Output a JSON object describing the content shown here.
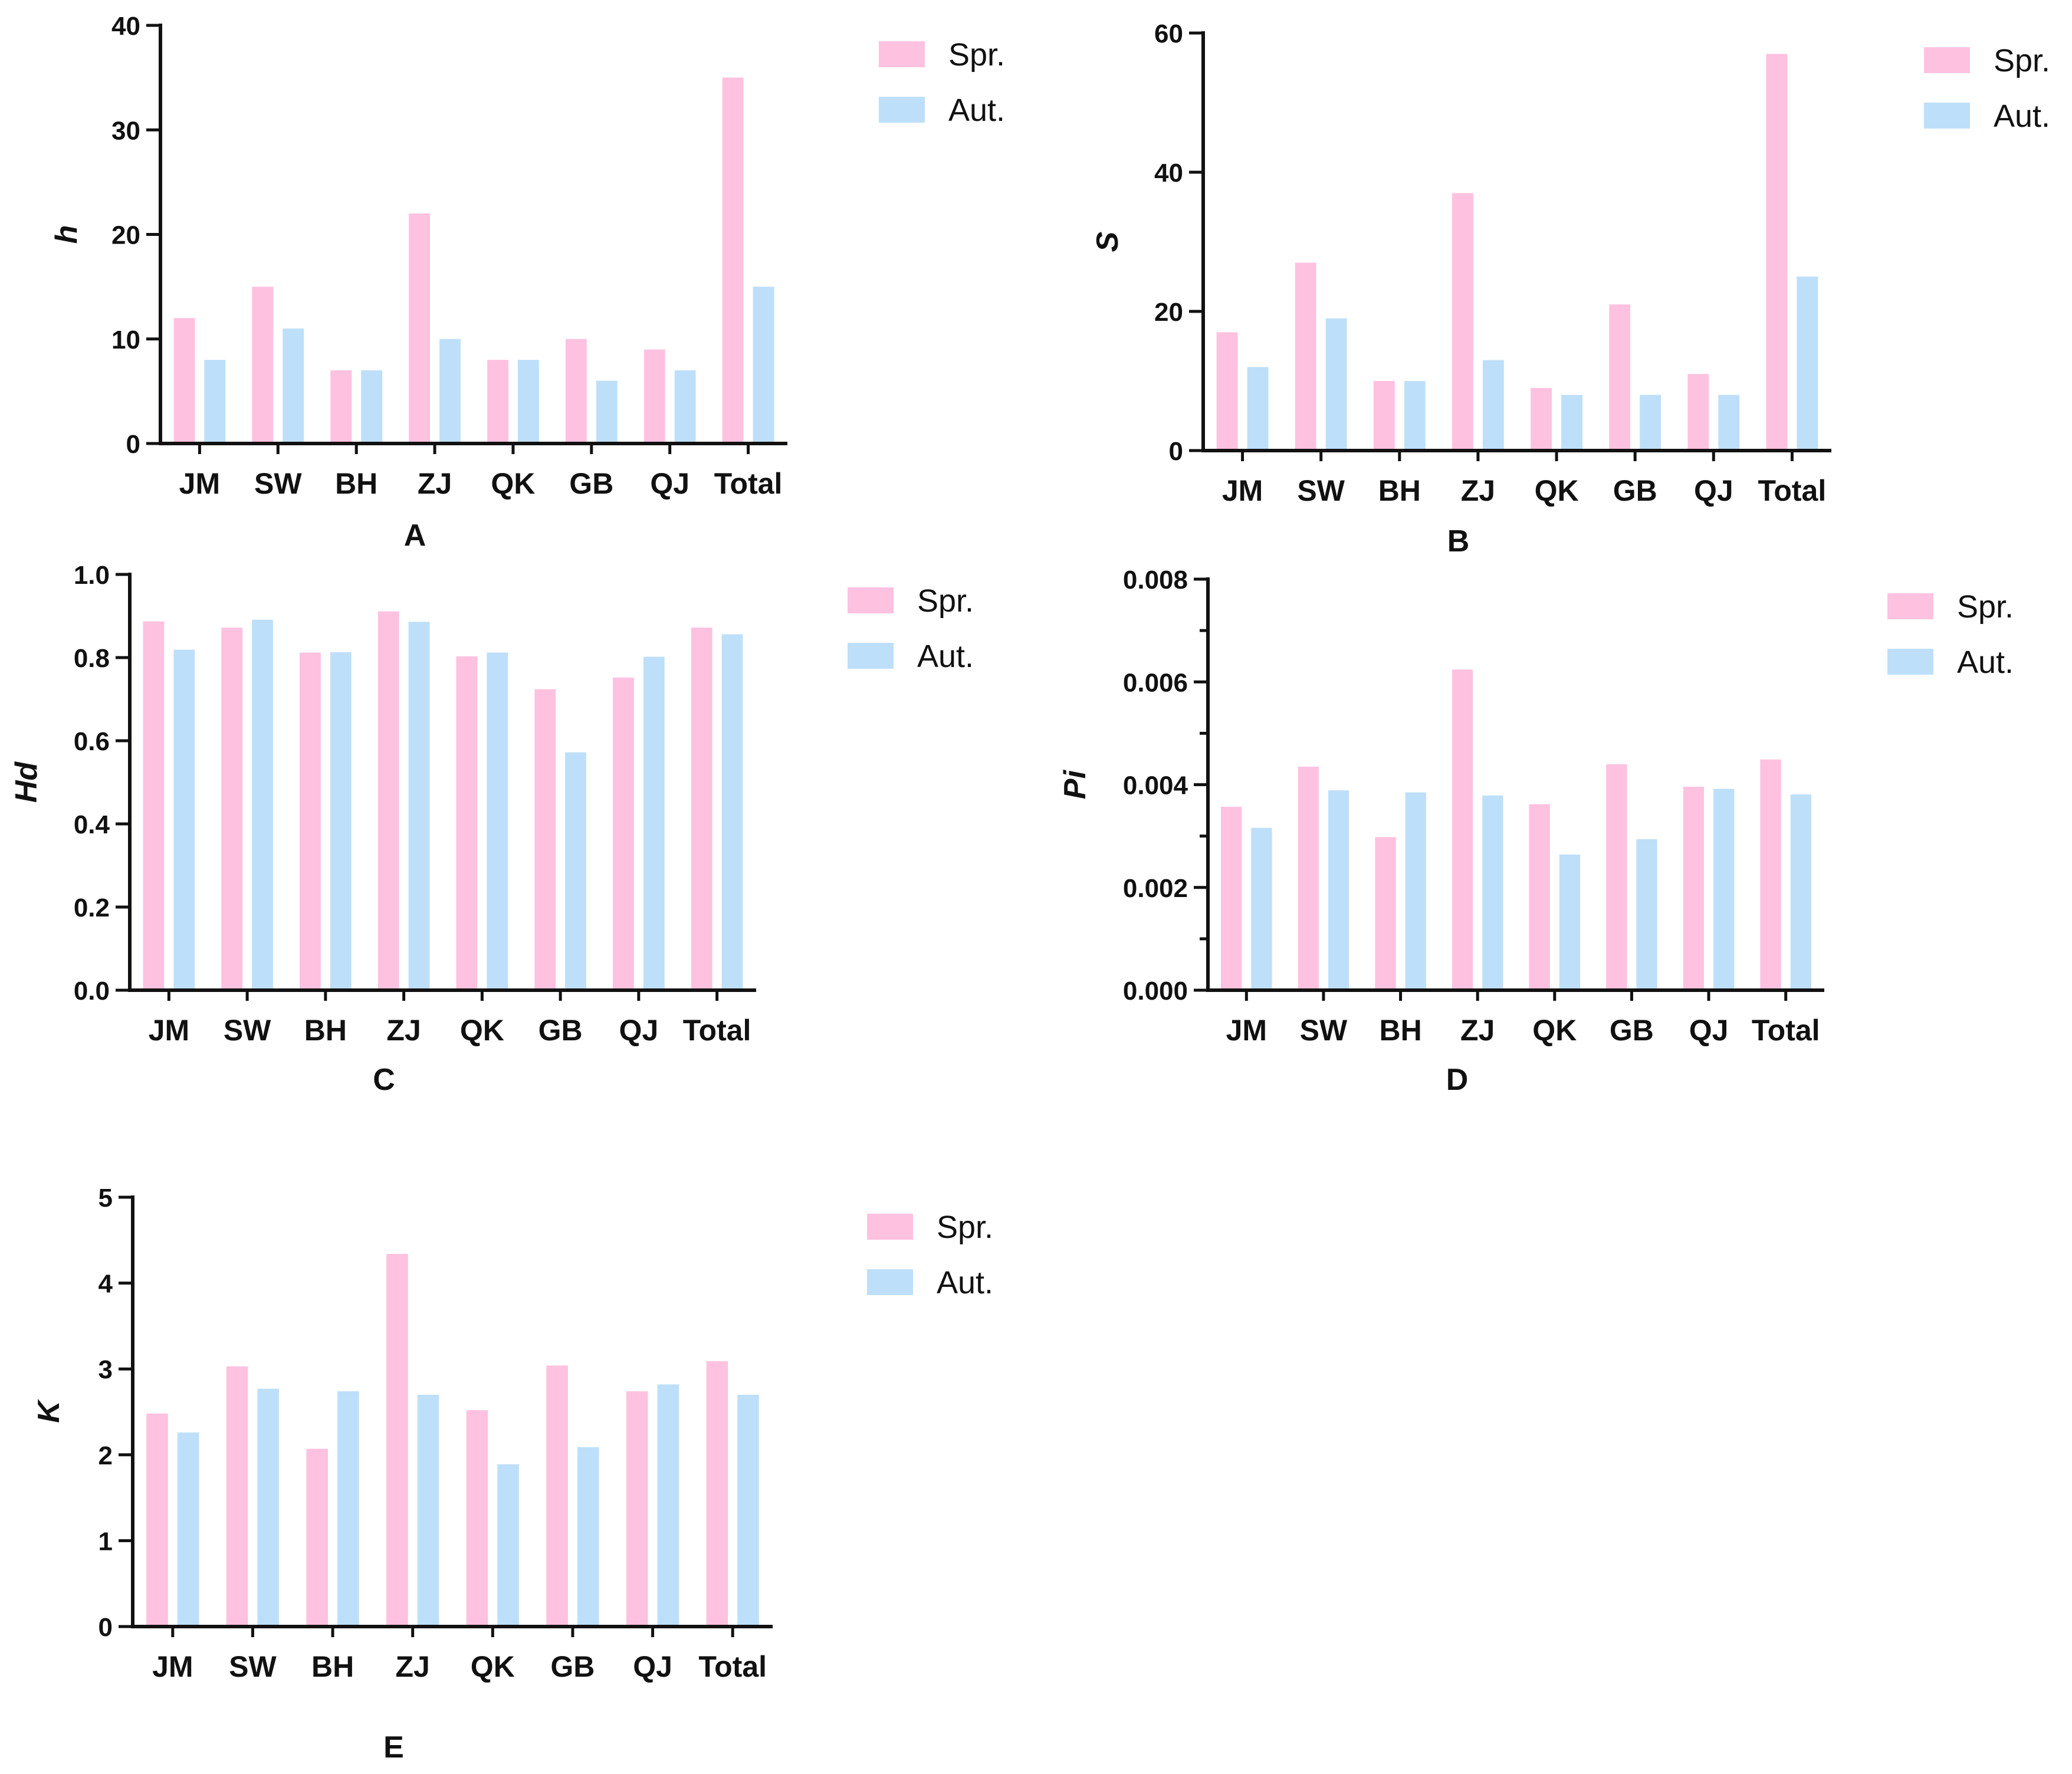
{
  "colors": {
    "spring": "#ffc1e0",
    "autumn": "#bedff9",
    "axis": "#111111"
  },
  "legend": {
    "spring_label": "Spr.",
    "autumn_label": "Aut."
  },
  "chart_data": [
    {
      "panel": "A",
      "type": "bar",
      "ylabel": "h",
      "categories": [
        "JM",
        "SW",
        "BH",
        "ZJ",
        "QK",
        "GB",
        "QJ",
        "Total"
      ],
      "series": [
        {
          "name": "Spr.",
          "values": [
            12,
            15,
            7,
            22,
            8,
            10,
            9,
            35
          ]
        },
        {
          "name": "Aut.",
          "values": [
            8,
            11,
            7,
            10,
            8,
            6,
            7,
            15
          ]
        }
      ],
      "ylim": [
        0,
        40
      ],
      "yticks": [
        0,
        10,
        20,
        30,
        40
      ],
      "ytick_labels": [
        "0",
        "10",
        "20",
        "30",
        "40"
      ],
      "minor_per_major": 0,
      "legend_position": "top-right"
    },
    {
      "panel": "B",
      "type": "bar",
      "ylabel": "S",
      "categories": [
        "JM",
        "SW",
        "BH",
        "ZJ",
        "QK",
        "GB",
        "QJ",
        "Total"
      ],
      "series": [
        {
          "name": "Spr.",
          "values": [
            17,
            27,
            10,
            37,
            9,
            21,
            11,
            57
          ]
        },
        {
          "name": "Aut.",
          "values": [
            12,
            19,
            10,
            13,
            8,
            8,
            8,
            25
          ]
        }
      ],
      "ylim": [
        0,
        60
      ],
      "yticks": [
        0,
        20,
        40,
        60
      ],
      "ytick_labels": [
        "0",
        "20",
        "40",
        "60"
      ],
      "minor_per_major": 0,
      "legend_position": "top-right"
    },
    {
      "panel": "C",
      "type": "bar",
      "ylabel": "Hd",
      "categories": [
        "JM",
        "SW",
        "BH",
        "ZJ",
        "QK",
        "GB",
        "QJ",
        "Total"
      ],
      "series": [
        {
          "name": "Spr.",
          "values": [
            0.887,
            0.872,
            0.812,
            0.911,
            0.803,
            0.724,
            0.752,
            0.872
          ]
        },
        {
          "name": "Aut.",
          "values": [
            0.819,
            0.891,
            0.813,
            0.886,
            0.812,
            0.572,
            0.802,
            0.856
          ]
        }
      ],
      "ylim": [
        0,
        1.0
      ],
      "yticks": [
        0,
        0.2,
        0.4,
        0.6,
        0.8,
        1.0
      ],
      "ytick_labels": [
        "0.0",
        "0.2",
        "0.4",
        "0.6",
        "0.8",
        "1.0"
      ],
      "minor_per_major": 0,
      "legend_position": "top-right"
    },
    {
      "panel": "D",
      "type": "bar",
      "ylabel": "Pi",
      "categories": [
        "JM",
        "SW",
        "BH",
        "ZJ",
        "QK",
        "GB",
        "QJ",
        "Total"
      ],
      "series": [
        {
          "name": "Spr.",
          "values": [
            0.00357,
            0.00435,
            0.00298,
            0.00624,
            0.00362,
            0.0044,
            0.00396,
            0.00449
          ]
        },
        {
          "name": "Aut.",
          "values": [
            0.00316,
            0.00389,
            0.00385,
            0.00379,
            0.00264,
            0.00294,
            0.00392,
            0.00381
          ]
        }
      ],
      "ylim": [
        0,
        0.008
      ],
      "yticks": [
        0,
        0.002,
        0.004,
        0.006,
        0.008
      ],
      "ytick_labels": [
        "0.000",
        "0.002",
        "0.004",
        "0.006",
        "0.008"
      ],
      "minor_per_major": 1,
      "legend_position": "top-right"
    },
    {
      "panel": "E",
      "type": "bar",
      "ylabel": "K",
      "categories": [
        "JM",
        "SW",
        "BH",
        "ZJ",
        "QK",
        "GB",
        "QJ",
        "Total"
      ],
      "series": [
        {
          "name": "Spr.",
          "values": [
            2.48,
            3.03,
            2.07,
            4.34,
            2.52,
            3.04,
            2.74,
            3.09
          ]
        },
        {
          "name": "Aut.",
          "values": [
            2.26,
            2.77,
            2.74,
            2.7,
            1.89,
            2.09,
            2.82,
            2.7
          ]
        }
      ],
      "ylim": [
        0,
        5
      ],
      "yticks": [
        0,
        1,
        2,
        3,
        4,
        5
      ],
      "ytick_labels": [
        "0",
        "1",
        "2",
        "3",
        "4",
        "5"
      ],
      "minor_per_major": 0,
      "legend_position": "top-right"
    }
  ]
}
